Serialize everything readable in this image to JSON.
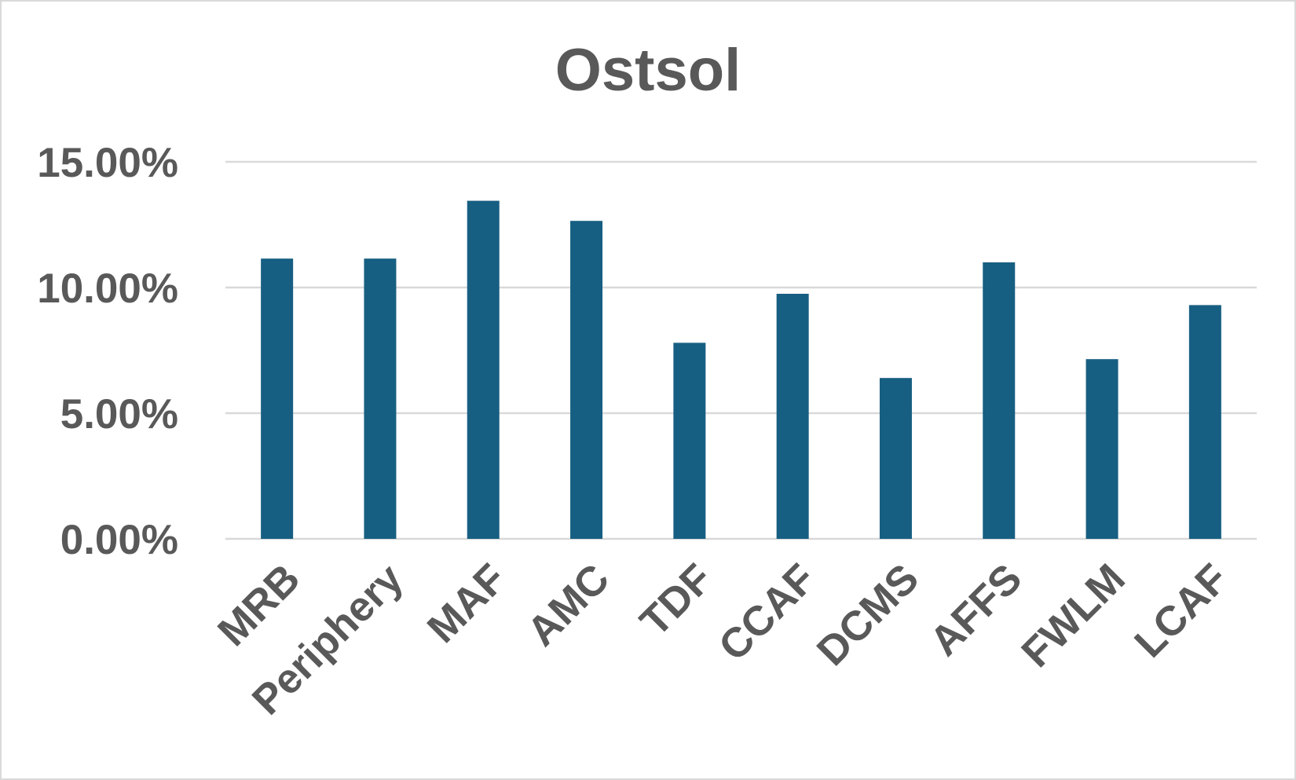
{
  "chart_data": {
    "type": "bar",
    "title": "Ostsol",
    "categories": [
      "MRB",
      "Periphery",
      "MAF",
      "AMC",
      "TDF",
      "CCAF",
      "DCMS",
      "AFFS",
      "FWLM",
      "LCAF"
    ],
    "series": [
      {
        "values": [
          0.1115,
          0.1115,
          0.1345,
          0.1265,
          0.078,
          0.0975,
          0.064,
          0.11,
          0.0715,
          0.093
        ],
        "color": "#175f82"
      }
    ],
    "y_ticks": [
      "0.00%",
      "5.00%",
      "10.00%",
      "15.00%"
    ],
    "ylim": [
      0,
      0.15
    ],
    "y_tick_values": [
      0,
      0.05,
      0.1,
      0.15
    ],
    "xlabel": "",
    "ylabel": "",
    "grid": true,
    "legend": "none",
    "colors": {
      "bar": "#175f82",
      "text": "#595959",
      "grid": "#d9d9d9",
      "border": "#d9d9d9"
    }
  }
}
